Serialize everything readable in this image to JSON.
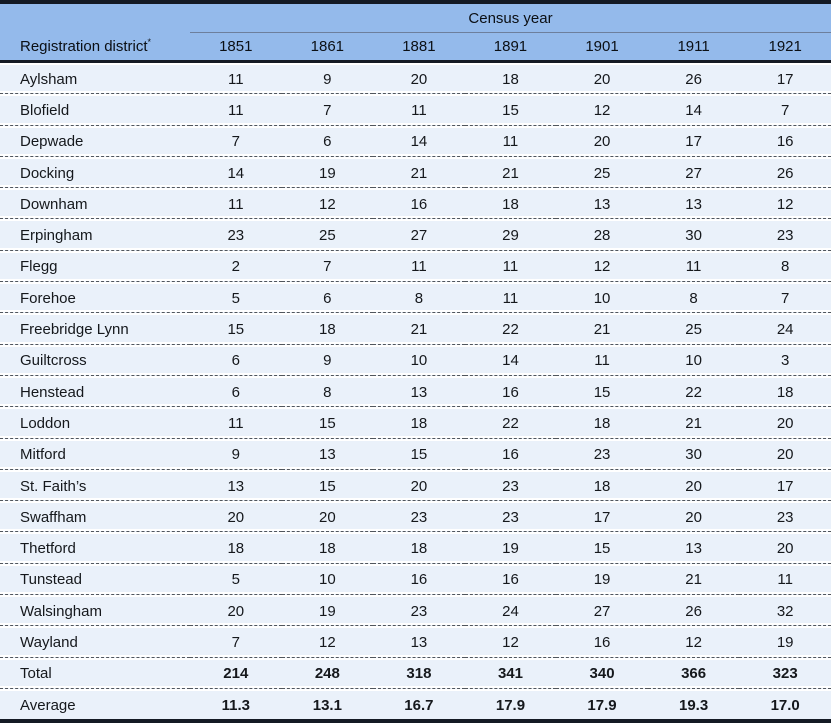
{
  "colors": {
    "header-bg": "#94baeb",
    "row-bg": "#eaf1fa",
    "dark-border": "#141a24",
    "thin-rule": "#6d7f9c",
    "dash": "#50565d",
    "text": "#15181c"
  },
  "table": {
    "census_year_label": "Census year",
    "district_header": "Registration district",
    "district_header_footnote": "*",
    "years": [
      "1851",
      "1861",
      "1881",
      "1891",
      "1901",
      "1911",
      "1921"
    ],
    "rows": [
      {
        "district": "Aylsham",
        "values": [
          11,
          9,
          20,
          18,
          20,
          26,
          17
        ]
      },
      {
        "district": "Blofield",
        "values": [
          11,
          7,
          11,
          15,
          12,
          14,
          7
        ]
      },
      {
        "district": "Depwade",
        "values": [
          7,
          6,
          14,
          11,
          20,
          17,
          16
        ]
      },
      {
        "district": "Docking",
        "values": [
          14,
          19,
          21,
          21,
          25,
          27,
          26
        ]
      },
      {
        "district": "Downham",
        "values": [
          11,
          12,
          16,
          18,
          13,
          13,
          12
        ]
      },
      {
        "district": "Erpingham",
        "values": [
          23,
          25,
          27,
          29,
          28,
          30,
          23
        ]
      },
      {
        "district": "Flegg",
        "values": [
          2,
          7,
          11,
          11,
          12,
          11,
          8
        ]
      },
      {
        "district": "Forehoe",
        "values": [
          5,
          6,
          8,
          11,
          10,
          8,
          7
        ]
      },
      {
        "district": "Freebridge Lynn",
        "values": [
          15,
          18,
          21,
          22,
          21,
          25,
          24
        ]
      },
      {
        "district": "Guiltcross",
        "values": [
          6,
          9,
          10,
          14,
          11,
          10,
          3
        ]
      },
      {
        "district": "Henstead",
        "values": [
          6,
          8,
          13,
          16,
          15,
          22,
          18
        ]
      },
      {
        "district": "Loddon",
        "values": [
          11,
          15,
          18,
          22,
          18,
          21,
          20
        ]
      },
      {
        "district": "Mitford",
        "values": [
          9,
          13,
          15,
          16,
          23,
          30,
          20
        ]
      },
      {
        "district": "St. Faith’s",
        "values": [
          13,
          15,
          20,
          23,
          18,
          20,
          17
        ]
      },
      {
        "district": "Swaffham",
        "values": [
          20,
          20,
          23,
          23,
          17,
          20,
          23
        ]
      },
      {
        "district": "Thetford",
        "values": [
          18,
          18,
          18,
          19,
          15,
          13,
          20
        ]
      },
      {
        "district": "Tunstead",
        "values": [
          5,
          10,
          16,
          16,
          19,
          21,
          11
        ]
      },
      {
        "district": "Walsingham",
        "values": [
          20,
          19,
          23,
          24,
          27,
          26,
          32
        ]
      },
      {
        "district": "Wayland",
        "values": [
          7,
          12,
          13,
          12,
          16,
          12,
          19
        ]
      }
    ],
    "total": {
      "label": "Total",
      "values": [
        "214",
        "248",
        "318",
        "341",
        "340",
        "366",
        "323"
      ]
    },
    "average": {
      "label": "Average",
      "values": [
        "11.3",
        "13.1",
        "16.7",
        "17.9",
        "17.9",
        "19.3",
        "17.0"
      ]
    }
  }
}
